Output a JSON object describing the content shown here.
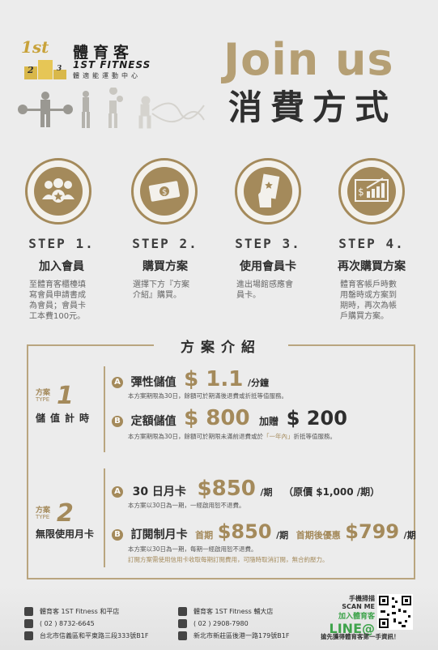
{
  "brand": {
    "name_cn": "體育客",
    "name_en": "1ST FITNESS",
    "tagline": "體適能運動中心",
    "logo_digits": [
      "1st",
      "2",
      "1",
      "3"
    ]
  },
  "header": {
    "title_en": "Join us",
    "title_cn": "消費方式"
  },
  "steps": [
    {
      "icon": "members-group-icon",
      "title": "STEP 1.",
      "sub": "加入會員",
      "desc": "至體育客櫃檯填寫會員申請書成為會員；會員卡工本費100元。"
    },
    {
      "icon": "money-bills-icon",
      "title": "STEP 2.",
      "sub": "購買方案",
      "desc": "選擇下方『方案介紹』購買。"
    },
    {
      "icon": "hand-card-icon",
      "title": "STEP 3.",
      "sub": "使用會員卡",
      "desc": "進出場館感應會員卡。"
    },
    {
      "icon": "chart-growth-icon",
      "title": "STEP 4.",
      "sub": "再次購買方案",
      "desc": "體育客帳戶時數用罄時或方案到期時，再次為帳戶購買方案。"
    }
  ],
  "plans": {
    "section_title": "方案介紹",
    "type1": {
      "label_top": "方案",
      "label_type": "TYPE",
      "num": "1",
      "name": "儲值計時",
      "a_badge": "A",
      "a_title": "彈性儲值",
      "a_price": "$ 1.1",
      "a_unit": "/分鐘",
      "a_note": "本方案期限為30日，餘額可於期滿後退費或折抵等值服務。",
      "b_badge": "B",
      "b_title": "定額儲值",
      "b_price": "$ 800",
      "b_bonus_label": "加贈",
      "b_bonus": "$ 200",
      "b_note_1": "本方案期限為30日，餘額可於期限未滿前退費或於",
      "b_note_hl": "「一年內」",
      "b_note_2": "折抵等值服務。"
    },
    "type2": {
      "label_top": "方案",
      "label_type": "TYPE",
      "num": "2",
      "name": "無限使用月卡",
      "a_badge": "A",
      "a_title": "30 日月卡",
      "a_price": "$850",
      "a_unit": "/期",
      "a_orig": "（原價 $1,000 /期）",
      "a_note": "本方案以30日為一期，一經啟用恕不退費。",
      "b_badge": "B",
      "b_title": "訂閱制月卡",
      "b_first_label": "首期",
      "b_price": "$850",
      "b_unit": "/期",
      "b_after_label": "首期後優惠",
      "b_after_price": "$799",
      "b_after_unit": "/期",
      "b_note_1": "本方案以30日為一期，每期一經啟用恕不退費。",
      "b_note_2": "訂閱方案需使用信用卡收取每期訂閱費用，可隨時取消訂閱，無合約壓力。"
    }
  },
  "footer": {
    "branch1": {
      "fb": "體育客 1ST Fitness 和平店",
      "phone": "( 02 ) 8732-6645",
      "addr": "台北市信義區和平東路三段333號B1F"
    },
    "branch2": {
      "fb": "體育客 1ST Fitness 輔大店",
      "phone": "( 02 ) 2908-7980",
      "addr": "新北市新莊區後港一路179號B1F"
    },
    "line": {
      "scan": "手機掃描",
      "scan_en": "SCAN ME",
      "add": "加入體育客",
      "brand": "LINE@",
      "promo": "搶先獲得體育客第一手資訊！"
    }
  },
  "colors": {
    "accent": "#a48a5b",
    "background": "#ececec",
    "text": "#3a3a3a"
  }
}
